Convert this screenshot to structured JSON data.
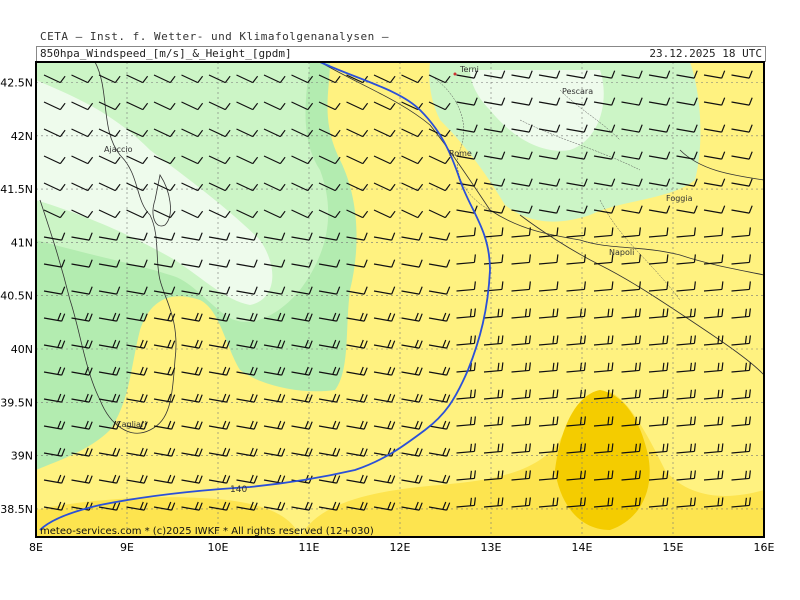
{
  "header": {
    "source": "CETA — Inst. f. Wetter- und Klimafolgenanalysen —",
    "variable": "850hpa_Windspeed_[m/s]_&_Height_[gpdm]",
    "valid_time": "23.12.2025 18 UTC"
  },
  "map": {
    "lon_labels": [
      "8E",
      "9E",
      "10E",
      "11E",
      "12E",
      "13E",
      "14E",
      "15E",
      "16E"
    ],
    "lat_labels": [
      "42.5N",
      "42N",
      "41.5N",
      "41N",
      "40.5N",
      "40N",
      "39.5N",
      "39N",
      "38.5N"
    ],
    "contour_label": "140",
    "cities": [
      {
        "name": "Terni"
      },
      {
        "name": "Pescara"
      },
      {
        "name": "Ajaccio"
      },
      {
        "name": "Rome"
      },
      {
        "name": "Foggia"
      },
      {
        "name": "Napoli"
      },
      {
        "name": "Cagliari"
      }
    ],
    "colors": {
      "very_light_green": "#eefbec",
      "light_green": "#ccf5c6",
      "green": "#b3ecb0",
      "light_yellow": "#fff280",
      "yellow": "#fde44f",
      "gold": "#f4cc00",
      "contour": "#2b50d8"
    }
  },
  "footer": {
    "credit": "meteo-services.com * (c)2025 IWKF * All rights reserved (12+030)"
  }
}
